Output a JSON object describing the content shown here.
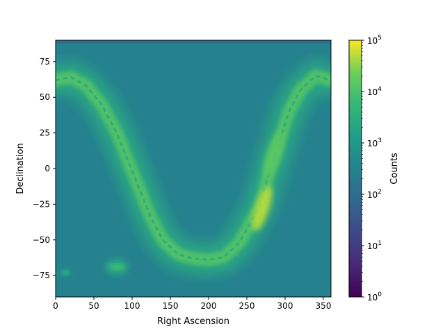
{
  "chart_data": {
    "type": "heatmap",
    "title": "",
    "xlabel": "Right Ascension",
    "ylabel": "Declination",
    "xlim": [
      0,
      360
    ],
    "ylim": [
      -90,
      90
    ],
    "xticks": [
      0,
      50,
      100,
      150,
      200,
      250,
      300,
      350
    ],
    "yticks": [
      -75,
      -50,
      -25,
      0,
      25,
      50,
      75
    ],
    "colormap": "viridis",
    "colorbar": {
      "label": "Counts",
      "scale": "log",
      "range": [
        1,
        100000
      ],
      "ticks": [
        {
          "value": 1,
          "base": "10",
          "exp": "0"
        },
        {
          "value": 10,
          "base": "10",
          "exp": "1"
        },
        {
          "value": 100,
          "base": "10",
          "exp": "2"
        },
        {
          "value": 1000,
          "base": "10",
          "exp": "3"
        },
        {
          "value": 10000,
          "base": "10",
          "exp": "4"
        },
        {
          "value": 100000,
          "base": "10",
          "exp": "5"
        }
      ]
    },
    "background_counts": 300,
    "galactic_plane": [
      {
        "ra": 0,
        "dec": 62
      },
      {
        "ra": 20,
        "dec": 64
      },
      {
        "ra": 40,
        "dec": 58
      },
      {
        "ra": 60,
        "dec": 45
      },
      {
        "ra": 80,
        "dec": 25
      },
      {
        "ra": 95,
        "dec": 5
      },
      {
        "ra": 110,
        "dec": -15
      },
      {
        "ra": 125,
        "dec": -35
      },
      {
        "ra": 140,
        "dec": -50
      },
      {
        "ra": 160,
        "dec": -60
      },
      {
        "ra": 180,
        "dec": -63
      },
      {
        "ra": 200,
        "dec": -64
      },
      {
        "ra": 220,
        "dec": -62
      },
      {
        "ra": 240,
        "dec": -52
      },
      {
        "ra": 255,
        "dec": -38
      },
      {
        "ra": 268,
        "dec": -25
      },
      {
        "ra": 278,
        "dec": -5
      },
      {
        "ra": 290,
        "dec": 15
      },
      {
        "ra": 305,
        "dec": 40
      },
      {
        "ra": 320,
        "dec": 55
      },
      {
        "ra": 340,
        "dec": 65
      },
      {
        "ra": 360,
        "dec": 62
      }
    ],
    "bright_regions": [
      {
        "ra": 270,
        "dec": -28,
        "counts": 50000
      },
      {
        "ra": 285,
        "dec": 10,
        "counts": 15000
      }
    ],
    "magellanic_clouds": [
      {
        "ra": 80,
        "dec": -69,
        "counts": 8000
      },
      {
        "ra": 13,
        "dec": -73,
        "counts": 5000
      }
    ]
  }
}
